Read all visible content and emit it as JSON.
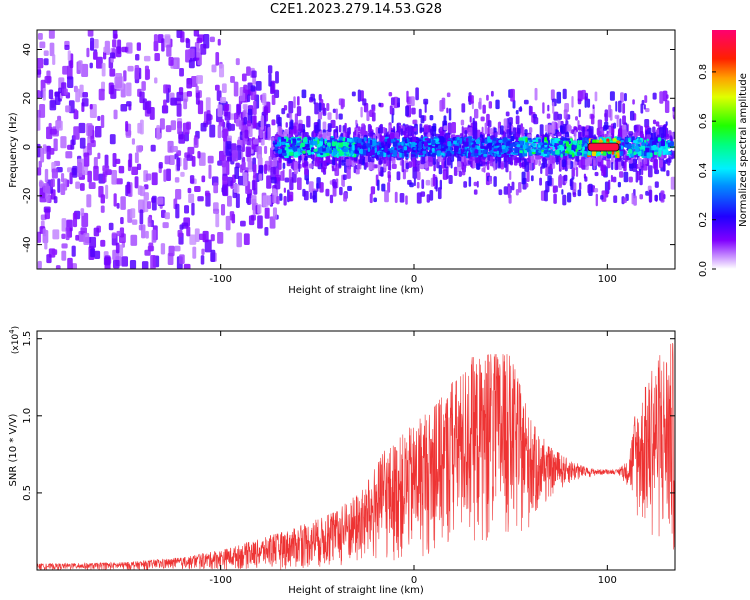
{
  "title": "C2E1.2023.279.14.53.G28",
  "chart_data": [
    {
      "type": "heatmap",
      "xlabel": "Height of straight line (km)",
      "ylabel": "Frequency (Hz)",
      "xlim": [
        -195,
        135
      ],
      "ylim": [
        -50,
        48
      ],
      "xticks": [
        -100,
        0,
        100
      ],
      "yticks": [
        -40,
        -20,
        0,
        20,
        40
      ],
      "colorbar": {
        "label": "Normalized spectral amplitude",
        "range": [
          0,
          0.97
        ],
        "ticks": [
          "0.0",
          "0.2",
          "0.4",
          "0.6",
          "0.8"
        ],
        "colormap": [
          "#ffffff",
          "#9a00ff",
          "#2400ff",
          "#00e0ff",
          "#00ff30",
          "#ffee00",
          "#ff2a00",
          "#ff0060"
        ]
      },
      "strong_return_band": {
        "center_hz": 0,
        "segments": [
          {
            "x_range": [
              -67,
              -30
            ],
            "peak_amplitude": 0.55
          },
          {
            "x_range": [
              55,
              88
            ],
            "peak_amplitude": 0.6
          },
          {
            "x_range": [
              90,
              106
            ],
            "peak_amplitude": 0.95
          },
          {
            "x_range": [
              110,
              132
            ],
            "peak_amplitude": 0.5
          }
        ]
      }
    },
    {
      "type": "line",
      "xlabel": "Height of straight line (km)",
      "ylabel": "SNR (10 * V/V)",
      "y_scale_label": "(x10",
      "y_scale_exponent": "4",
      "y_scale_suffix": ")",
      "xlim": [
        -195,
        135
      ],
      "ylim": [
        0,
        1.55
      ],
      "xticks": [
        -100,
        0,
        100
      ],
      "yticks": [
        "0.5",
        "1.0",
        "1.5"
      ],
      "ytick_values": [
        0.5,
        1.0,
        1.5
      ],
      "color": "#ee3333",
      "envelope": {
        "x": [
          -195,
          -150,
          -120,
          -100,
          -80,
          -60,
          -40,
          -25,
          -15,
          0,
          10,
          20,
          30,
          40,
          50,
          60,
          70,
          80,
          90,
          100,
          105,
          110,
          115,
          120,
          125,
          130,
          135
        ],
        "upper": [
          0.04,
          0.05,
          0.08,
          0.13,
          0.2,
          0.28,
          0.38,
          0.55,
          0.78,
          0.95,
          1.05,
          1.22,
          1.38,
          1.4,
          1.4,
          0.98,
          0.8,
          0.72,
          0.66,
          0.65,
          0.65,
          0.7,
          1.05,
          1.2,
          1.35,
          1.45,
          1.5
        ],
        "lower": [
          0.0,
          0.0,
          0.0,
          0.0,
          0.0,
          0.0,
          0.0,
          0.0,
          0.02,
          0.05,
          0.08,
          0.12,
          0.15,
          0.15,
          0.12,
          0.25,
          0.45,
          0.55,
          0.6,
          0.62,
          0.62,
          0.55,
          0.3,
          0.2,
          0.15,
          0.05,
          0.02
        ]
      }
    }
  ]
}
